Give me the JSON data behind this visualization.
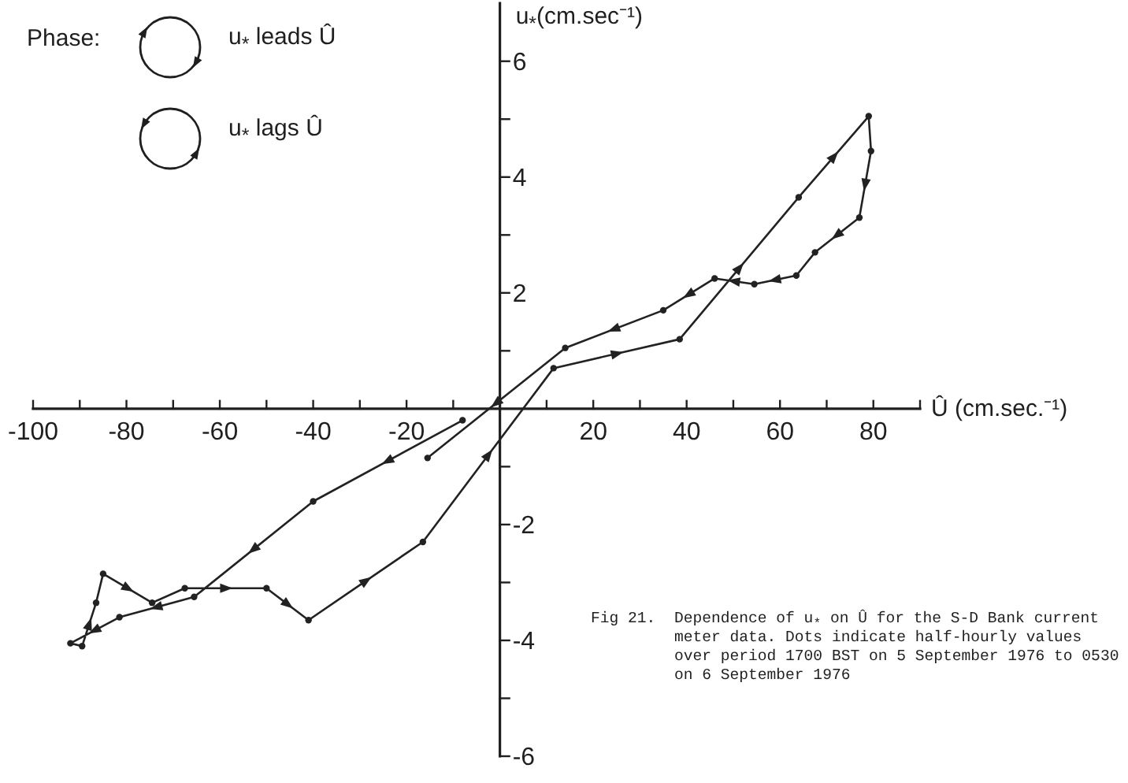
{
  "chart_data": {
    "type": "line",
    "xlabel": "Û (cm.sec.⁻¹)",
    "ylabel": "u$_{*}$(cm.sec⁻¹)",
    "annotations": [
      "Phase:",
      "u$_{*}$ leads Û",
      "u$_{*}$ lags Û",
      "Fig 21.",
      "Dependence of u$_{*}$ on Û for the S-D Bank current meter data. Dots indicate half-hourly values over period 1700 BST on 5 September 1976 to 0530 on 6 September 1976"
    ],
    "series": [
      {
        "color": "#222222",
        "x": [
          -8,
          -40,
          -65.5,
          -81.5,
          -92,
          -89.5,
          -86.5,
          -85,
          -74.5,
          -67.5,
          -50,
          -41,
          -16.5,
          11.5,
          38.5,
          64,
          79,
          79.5,
          77,
          67.5,
          63.5,
          54.5,
          46,
          35,
          14,
          -15.5
        ],
        "values": [
          -0.2,
          -1.6,
          -3.25,
          -3.6,
          -4.05,
          -4.1,
          -3.35,
          -2.85,
          -3.35,
          -3.1,
          -3.1,
          -3.65,
          -2.3,
          0.7,
          1.2,
          3.65,
          5.05,
          4.45,
          3.3,
          2.7,
          2.3,
          2.15,
          2.25,
          1.7,
          1.05,
          -0.85
        ]
      }
    ],
    "xlim": [
      -100,
      90
    ],
    "xticks": [
      -100,
      {
        "value": -90,
        "label": null
      },
      -80,
      {
        "value": -70,
        "label": null
      },
      -60,
      {
        "value": -50,
        "label": null
      },
      -40,
      {
        "value": -30,
        "label": null
      },
      -20,
      {
        "value": -10,
        "label": null
      },
      {
        "value": 10,
        "label": null
      },
      20,
      {
        "value": 30,
        "label": null
      },
      40,
      {
        "value": 50,
        "label": null
      },
      60,
      {
        "value": 70,
        "label": null
      },
      80,
      {
        "value": 90,
        "label": null
      }
    ],
    "ylim": [
      -6,
      7
    ],
    "yticks": [
      -6,
      {
        "value": -5,
        "label": null
      },
      -4,
      {
        "value": -3,
        "label": null
      },
      -2,
      {
        "value": -1,
        "label": null
      },
      {
        "value": 1,
        "label": null
      },
      2,
      {
        "value": 3,
        "label": null
      },
      4,
      {
        "value": 5,
        "label": null
      },
      6
    ],
    "marker": "circle"
  }
}
